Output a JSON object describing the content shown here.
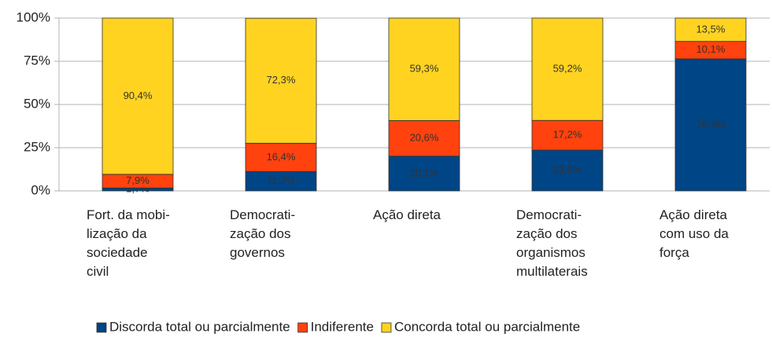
{
  "chart_data": {
    "type": "stacked_bar_100",
    "categories": [
      "Fort. da mobi-\nlização da\nsociedade\ncivil",
      "Democrati-\nzação dos\ngovernos",
      "Ação direta",
      "Democrati-\nzação dos\norganismos\nmultilaterais",
      "Ação direta\ncom uso da\nforça"
    ],
    "series": [
      {
        "name": "Discorda total ou parcialmente",
        "color": "#004586",
        "values": [
          1.7,
          11.2,
          20.1,
          23.6,
          76.4
        ],
        "value_labels": [
          "1,7%",
          "11,2%",
          "20,1%",
          "23,6%",
          "76,4%"
        ]
      },
      {
        "name": "Indiferente",
        "color": "#ff420e",
        "values": [
          7.9,
          16.4,
          20.6,
          17.2,
          10.1
        ],
        "value_labels": [
          "7,9%",
          "16,4%",
          "20,6%",
          "17,2%",
          "10,1%"
        ]
      },
      {
        "name": "Concorda total ou parcialmente",
        "color": "#ffd320",
        "values": [
          90.4,
          72.3,
          59.3,
          59.2,
          13.5
        ],
        "value_labels": [
          "90,4%",
          "72,3%",
          "59,3%",
          "59,2%",
          "13,5%"
        ]
      }
    ],
    "ylim": [
      0,
      100
    ],
    "yticks": [
      {
        "value": 0,
        "label": "0%"
      },
      {
        "value": 25,
        "label": "25%"
      },
      {
        "value": 50,
        "label": "50%"
      },
      {
        "value": 75,
        "label": "75%"
      },
      {
        "value": 100,
        "label": "100%"
      }
    ],
    "grid": true,
    "legend": "bottom"
  }
}
